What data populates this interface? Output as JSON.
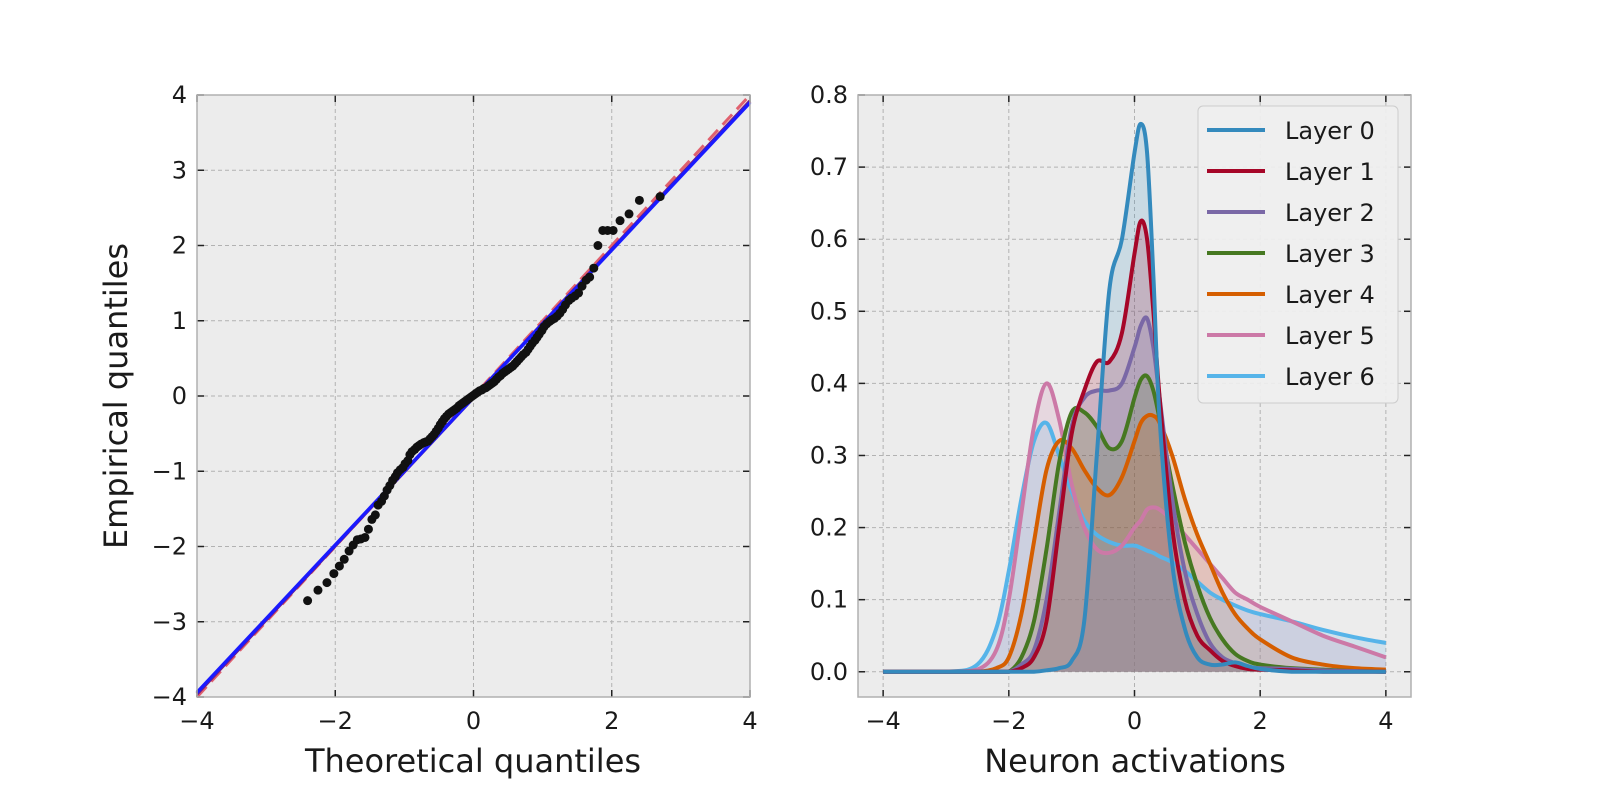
{
  "chart_data": [
    {
      "type": "scatter",
      "panel": "left",
      "xlabel": "Theoretical quantiles",
      "ylabel": "Empirical quantiles",
      "xlim": [
        -4,
        4
      ],
      "ylim": [
        -4,
        4
      ],
      "xticks": [
        "−4",
        "−2",
        "0",
        "2",
        "4"
      ],
      "yticks": [
        "−4",
        "−3",
        "−2",
        "−1",
        "0",
        "1",
        "2",
        "3",
        "4"
      ],
      "grid": true,
      "background": "#ececec",
      "reference_lines": [
        {
          "style": "dashed",
          "color": "#e0606e",
          "points": [
            [
              -4,
              -4
            ],
            [
              4,
              4
            ]
          ]
        },
        {
          "style": "solid",
          "color": "#7a1f7a",
          "points": [
            [
              -4,
              -3.96
            ],
            [
              4,
              3.92
            ]
          ]
        },
        {
          "style": "solid",
          "color": "#1a1aff",
          "points": [
            [
              -4,
              -3.94
            ],
            [
              4,
              3.9
            ]
          ]
        }
      ],
      "points_color": "#111111",
      "points": [
        [
          -2.4,
          -2.72
        ],
        [
          -2.25,
          -2.58
        ],
        [
          -2.12,
          -2.48
        ],
        [
          -2.02,
          -2.36
        ],
        [
          -1.94,
          -2.26
        ],
        [
          -1.87,
          -2.17
        ],
        [
          -1.8,
          -2.06
        ],
        [
          -1.74,
          -1.98
        ],
        [
          -1.68,
          -1.91
        ],
        [
          -1.63,
          -1.9
        ],
        [
          -1.57,
          -1.88
        ],
        [
          -1.52,
          -1.77
        ],
        [
          -1.47,
          -1.64
        ],
        [
          -1.42,
          -1.58
        ],
        [
          -1.38,
          -1.45
        ],
        [
          -1.33,
          -1.4
        ],
        [
          -1.29,
          -1.33
        ],
        [
          -1.25,
          -1.25
        ],
        [
          -1.21,
          -1.19
        ],
        [
          -1.17,
          -1.12
        ],
        [
          -1.13,
          -1.07
        ],
        [
          -1.1,
          -1.02
        ],
        [
          -1.06,
          -0.98
        ],
        [
          -1.02,
          -0.95
        ],
        [
          -0.99,
          -0.9
        ],
        [
          -0.95,
          -0.86
        ],
        [
          -0.92,
          -0.78
        ],
        [
          -0.89,
          -0.74
        ],
        [
          -0.85,
          -0.71
        ],
        [
          -0.82,
          -0.68
        ],
        [
          -0.79,
          -0.66
        ],
        [
          -0.76,
          -0.64
        ],
        [
          -0.72,
          -0.62
        ],
        [
          -0.69,
          -0.61
        ],
        [
          -0.66,
          -0.6
        ],
        [
          -0.63,
          -0.57
        ],
        [
          -0.6,
          -0.54
        ],
        [
          -0.57,
          -0.51
        ],
        [
          -0.54,
          -0.47
        ],
        [
          -0.51,
          -0.43
        ],
        [
          -0.48,
          -0.38
        ],
        [
          -0.45,
          -0.34
        ],
        [
          -0.42,
          -0.3
        ],
        [
          -0.39,
          -0.27
        ],
        [
          -0.36,
          -0.24
        ],
        [
          -0.33,
          -0.22
        ],
        [
          -0.3,
          -0.2
        ],
        [
          -0.27,
          -0.18
        ],
        [
          -0.24,
          -0.16
        ],
        [
          -0.21,
          -0.13
        ],
        [
          -0.18,
          -0.11
        ],
        [
          -0.15,
          -0.09
        ],
        [
          -0.12,
          -0.07
        ],
        [
          -0.09,
          -0.05
        ],
        [
          -0.06,
          -0.03
        ],
        [
          -0.03,
          -0.01
        ],
        [
          0.0,
          0.01
        ],
        [
          0.03,
          0.03
        ],
        [
          0.06,
          0.05
        ],
        [
          0.09,
          0.07
        ],
        [
          0.12,
          0.08
        ],
        [
          0.15,
          0.1
        ],
        [
          0.18,
          0.11
        ],
        [
          0.21,
          0.13
        ],
        [
          0.24,
          0.15
        ],
        [
          0.27,
          0.17
        ],
        [
          0.3,
          0.19
        ],
        [
          0.33,
          0.22
        ],
        [
          0.36,
          0.25
        ],
        [
          0.39,
          0.27
        ],
        [
          0.42,
          0.3
        ],
        [
          0.45,
          0.32
        ],
        [
          0.48,
          0.34
        ],
        [
          0.51,
          0.36
        ],
        [
          0.54,
          0.38
        ],
        [
          0.57,
          0.4
        ],
        [
          0.6,
          0.43
        ],
        [
          0.63,
          0.46
        ],
        [
          0.66,
          0.49
        ],
        [
          0.69,
          0.52
        ],
        [
          0.72,
          0.55
        ],
        [
          0.76,
          0.58
        ],
        [
          0.79,
          0.62
        ],
        [
          0.82,
          0.66
        ],
        [
          0.85,
          0.7
        ],
        [
          0.89,
          0.74
        ],
        [
          0.92,
          0.78
        ],
        [
          0.95,
          0.82
        ],
        [
          0.99,
          0.87
        ],
        [
          1.02,
          0.92
        ],
        [
          1.06,
          0.96
        ],
        [
          1.1,
          0.99
        ],
        [
          1.13,
          1.01
        ],
        [
          1.17,
          1.03
        ],
        [
          1.21,
          1.06
        ],
        [
          1.25,
          1.1
        ],
        [
          1.29,
          1.15
        ],
        [
          1.33,
          1.21
        ],
        [
          1.38,
          1.27
        ],
        [
          1.42,
          1.3
        ],
        [
          1.47,
          1.33
        ],
        [
          1.52,
          1.37
        ],
        [
          1.57,
          1.46
        ],
        [
          1.63,
          1.54
        ],
        [
          1.68,
          1.58
        ],
        [
          1.74,
          1.7
        ],
        [
          1.8,
          2.0
        ],
        [
          1.87,
          2.2
        ],
        [
          1.94,
          2.2
        ],
        [
          2.02,
          2.2
        ],
        [
          2.12,
          2.33
        ],
        [
          2.25,
          2.42
        ],
        [
          2.4,
          2.6
        ],
        [
          2.7,
          2.65
        ]
      ]
    },
    {
      "type": "line",
      "panel": "right",
      "xlabel": "Neuron activations",
      "ylabel": "",
      "xlim": [
        -4.4,
        4.4
      ],
      "ylim": [
        -0.035,
        0.8
      ],
      "xticks": [
        "−4",
        "−2",
        "0",
        "2",
        "4"
      ],
      "yticks": [
        "0.0",
        "0.1",
        "0.2",
        "0.3",
        "0.4",
        "0.5",
        "0.6",
        "0.7",
        "0.8"
      ],
      "grid": true,
      "background": "#ececec",
      "legend_position": "top-right",
      "filled": true,
      "x": [
        -4.0,
        -3.0,
        -2.5,
        -2.2,
        -2.0,
        -1.8,
        -1.6,
        -1.4,
        -1.2,
        -1.0,
        -0.8,
        -0.6,
        -0.4,
        -0.2,
        0.0,
        0.1,
        0.2,
        0.3,
        0.4,
        0.6,
        0.8,
        1.0,
        1.2,
        1.4,
        1.6,
        1.8,
        2.0,
        2.5,
        3.0,
        3.5,
        4.0
      ],
      "series": [
        {
          "name": "Layer 0",
          "color": "#348abd",
          "values": [
            0.0,
            0.0,
            0.0,
            0.0,
            0.0,
            0.0,
            0.0,
            0.002,
            0.005,
            0.015,
            0.07,
            0.3,
            0.53,
            0.6,
            0.72,
            0.76,
            0.72,
            0.55,
            0.35,
            0.15,
            0.06,
            0.02,
            0.01,
            0.01,
            0.013,
            0.008,
            0.004,
            0.0,
            0.0,
            0.0,
            0.0
          ]
        },
        {
          "name": "Layer 1",
          "color": "#a60628",
          "values": [
            0.0,
            0.0,
            0.0,
            0.0,
            0.0,
            0.005,
            0.02,
            0.07,
            0.2,
            0.33,
            0.39,
            0.43,
            0.43,
            0.47,
            0.58,
            0.625,
            0.6,
            0.5,
            0.38,
            0.2,
            0.1,
            0.05,
            0.03,
            0.015,
            0.008,
            0.004,
            0.003,
            0.002,
            0.0,
            0.0,
            0.0
          ]
        },
        {
          "name": "Layer 2",
          "color": "#7a68a6",
          "values": [
            0.0,
            0.0,
            0.0,
            0.0,
            0.0,
            0.01,
            0.03,
            0.1,
            0.22,
            0.34,
            0.38,
            0.39,
            0.39,
            0.4,
            0.45,
            0.48,
            0.49,
            0.45,
            0.38,
            0.24,
            0.14,
            0.08,
            0.04,
            0.02,
            0.012,
            0.007,
            0.005,
            0.004,
            0.002,
            0.001,
            0.0
          ]
        },
        {
          "name": "Layer 3",
          "color": "#467821",
          "values": [
            0.0,
            0.0,
            0.0,
            0.0,
            0.0,
            0.02,
            0.07,
            0.17,
            0.29,
            0.36,
            0.36,
            0.34,
            0.31,
            0.32,
            0.38,
            0.405,
            0.41,
            0.39,
            0.35,
            0.26,
            0.18,
            0.12,
            0.075,
            0.045,
            0.025,
            0.015,
            0.01,
            0.005,
            0.003,
            0.001,
            0.0
          ]
        },
        {
          "name": "Layer 4",
          "color": "#d55e00",
          "values": [
            0.0,
            0.0,
            0.0,
            0.005,
            0.02,
            0.08,
            0.18,
            0.28,
            0.32,
            0.31,
            0.28,
            0.255,
            0.245,
            0.27,
            0.32,
            0.345,
            0.355,
            0.355,
            0.345,
            0.3,
            0.24,
            0.19,
            0.15,
            0.11,
            0.08,
            0.06,
            0.045,
            0.02,
            0.01,
            0.005,
            0.003
          ]
        },
        {
          "name": "Layer 5",
          "color": "#cc79a7",
          "values": [
            0.0,
            0.0,
            0.003,
            0.03,
            0.1,
            0.22,
            0.34,
            0.4,
            0.35,
            0.26,
            0.2,
            0.17,
            0.165,
            0.175,
            0.2,
            0.21,
            0.225,
            0.228,
            0.225,
            0.21,
            0.19,
            0.17,
            0.15,
            0.13,
            0.11,
            0.1,
            0.09,
            0.07,
            0.05,
            0.035,
            0.02
          ]
        },
        {
          "name": "Layer 6",
          "color": "#56b4e9",
          "values": [
            0.0,
            0.0,
            0.01,
            0.06,
            0.14,
            0.24,
            0.32,
            0.345,
            0.3,
            0.25,
            0.21,
            0.19,
            0.18,
            0.175,
            0.175,
            0.172,
            0.168,
            0.165,
            0.16,
            0.152,
            0.14,
            0.125,
            0.11,
            0.1,
            0.092,
            0.085,
            0.08,
            0.07,
            0.058,
            0.048,
            0.04
          ]
        }
      ]
    }
  ]
}
